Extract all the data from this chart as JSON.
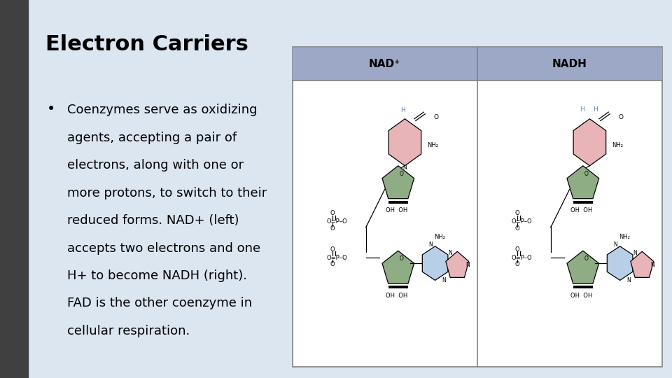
{
  "title": "Electron Carriers",
  "bullet_text": [
    "Coenzymes serve as oxidizing",
    "agents, accepting a pair of",
    "electrons, along with one or",
    "more protons, to switch to their",
    "reduced forms. NAD+ (left)",
    "accepts two electrons and one",
    "H+ to become NADH (right).",
    "FAD is the other coenzyme in",
    "cellular respiration."
  ],
  "background_color": "#dce6f1",
  "sidebar_color": "#404040",
  "title_color": "#000000",
  "text_color": "#000000",
  "title_fontsize": 22,
  "bullet_fontsize": 13,
  "table_header_color": "#9da8c7",
  "table_bg_color": "#ffffff",
  "table_border_color": "#808080",
  "nad_label": "NAD⁺",
  "nadh_label": "NADH",
  "ring_color_pink": "#e8b4b8",
  "ring_color_green": "#8fad85",
  "ring_color_blue": "#b8cfe8",
  "bond_color": "#000000",
  "h_label_color": "#5b7fc0"
}
